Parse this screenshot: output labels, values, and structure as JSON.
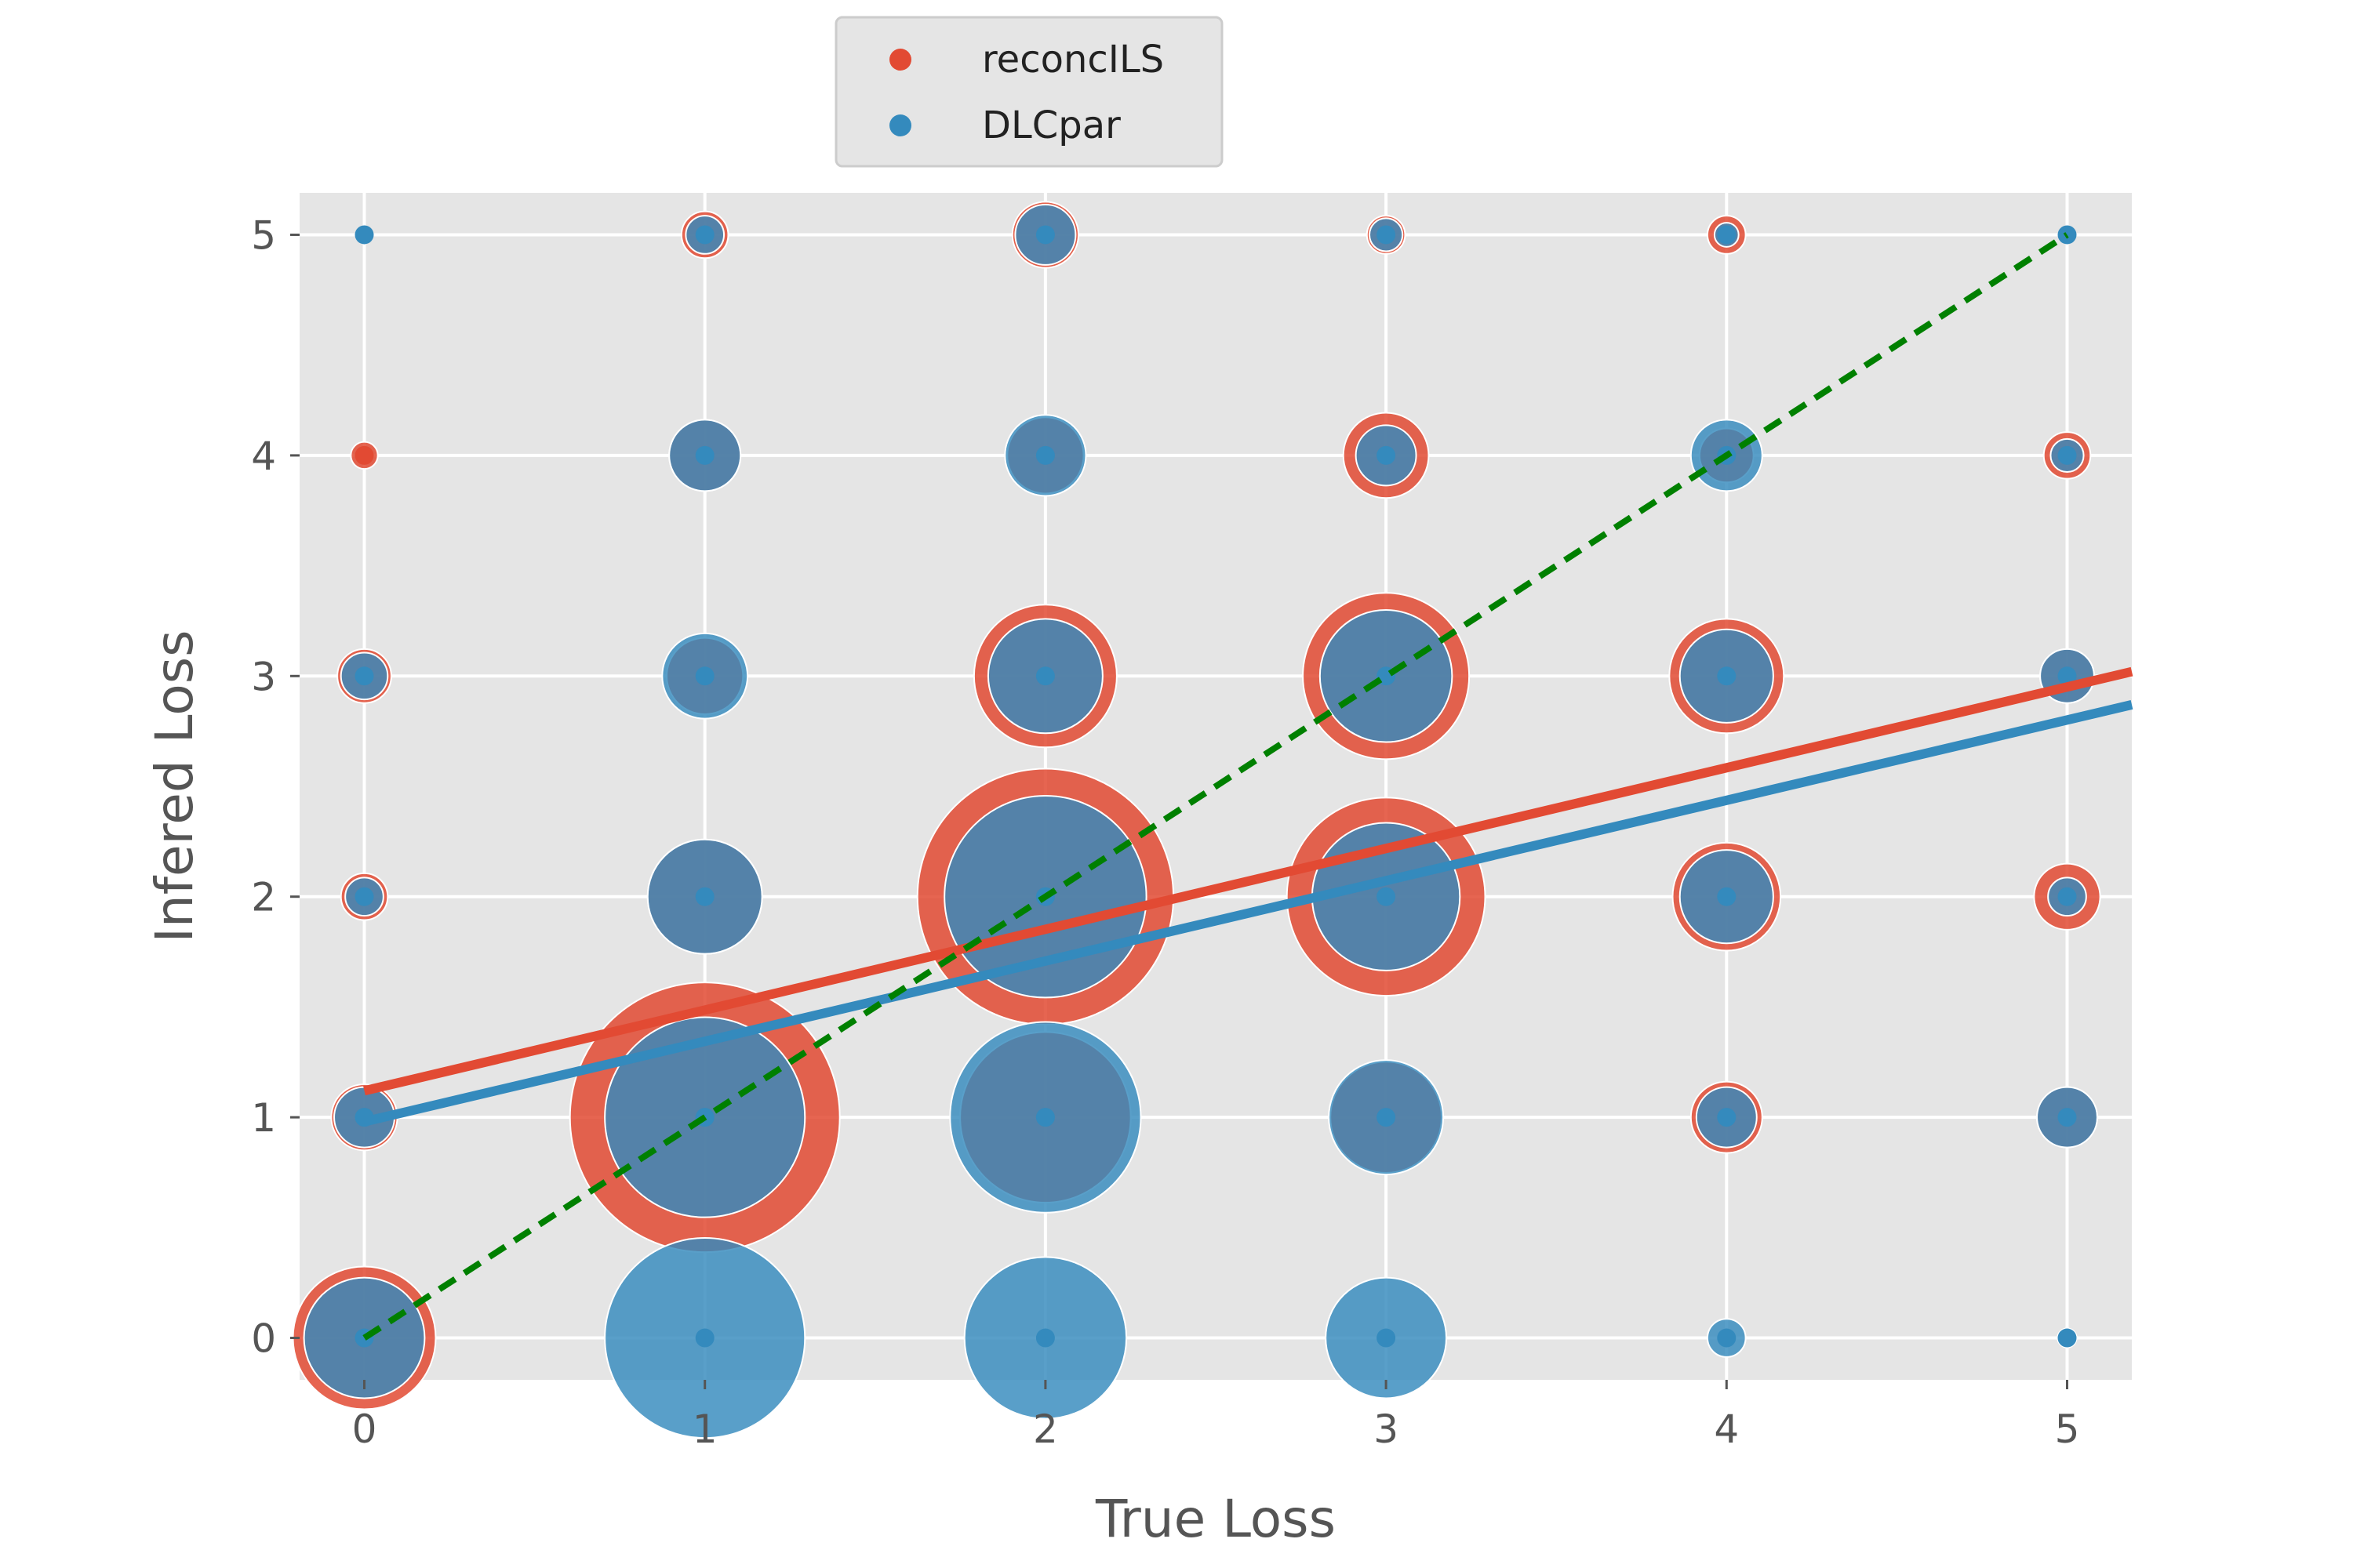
{
  "chart_data": {
    "type": "scatter",
    "title": "",
    "xlabel": "True Loss",
    "ylabel": "Infered Loss",
    "xlim": [
      -0.19,
      5.19
    ],
    "ylim": [
      -0.19,
      5.19
    ],
    "xticks": [
      "0",
      "1",
      "2",
      "3",
      "4",
      "5"
    ],
    "yticks": [
      "0",
      "1",
      "2",
      "3",
      "4",
      "5"
    ],
    "grid": true,
    "legend_position": "top-center",
    "series": [
      {
        "name": "reconcILS",
        "color": "#E24A33",
        "points": [
          {
            "x": 0,
            "y": 0,
            "count": 28
          },
          {
            "x": 0,
            "y": 1,
            "count": 6
          },
          {
            "x": 0,
            "y": 2,
            "count": 3
          },
          {
            "x": 0,
            "y": 3,
            "count": 4
          },
          {
            "x": 0,
            "y": 4,
            "count": 1
          },
          {
            "x": 1,
            "y": 1,
            "count": 100
          },
          {
            "x": 1,
            "y": 2,
            "count": 18
          },
          {
            "x": 1,
            "y": 3,
            "count": 8
          },
          {
            "x": 1,
            "y": 4,
            "count": 7
          },
          {
            "x": 1,
            "y": 5,
            "count": 3
          },
          {
            "x": 2,
            "y": 1,
            "count": 40
          },
          {
            "x": 2,
            "y": 2,
            "count": 90
          },
          {
            "x": 2,
            "y": 3,
            "count": 28
          },
          {
            "x": 2,
            "y": 4,
            "count": 8
          },
          {
            "x": 2,
            "y": 5,
            "count": 6
          },
          {
            "x": 3,
            "y": 1,
            "count": 17
          },
          {
            "x": 3,
            "y": 2,
            "count": 54
          },
          {
            "x": 3,
            "y": 3,
            "count": 38
          },
          {
            "x": 3,
            "y": 4,
            "count": 10
          },
          {
            "x": 3,
            "y": 5,
            "count": 2
          },
          {
            "x": 4,
            "y": 1,
            "count": 7
          },
          {
            "x": 4,
            "y": 2,
            "count": 16
          },
          {
            "x": 4,
            "y": 3,
            "count": 18
          },
          {
            "x": 4,
            "y": 4,
            "count": 4
          },
          {
            "x": 4,
            "y": 5,
            "count": 2
          },
          {
            "x": 5,
            "y": 1,
            "count": 5
          },
          {
            "x": 5,
            "y": 2,
            "count": 6
          },
          {
            "x": 5,
            "y": 3,
            "count": 4
          },
          {
            "x": 5,
            "y": 4,
            "count": 3
          }
        ]
      },
      {
        "name": "DLCpar",
        "color": "#348ABD",
        "points": [
          {
            "x": 0,
            "y": 0,
            "count": 20
          },
          {
            "x": 0,
            "y": 1,
            "count": 5
          },
          {
            "x": 0,
            "y": 2,
            "count": 2
          },
          {
            "x": 0,
            "y": 3,
            "count": 3
          },
          {
            "x": 0,
            "y": 5,
            "count": 0.2
          },
          {
            "x": 1,
            "y": 0,
            "count": 55
          },
          {
            "x": 1,
            "y": 1,
            "count": 55
          },
          {
            "x": 1,
            "y": 2,
            "count": 18
          },
          {
            "x": 1,
            "y": 3,
            "count": 10
          },
          {
            "x": 1,
            "y": 4,
            "count": 7
          },
          {
            "x": 1,
            "y": 5,
            "count": 2
          },
          {
            "x": 2,
            "y": 0,
            "count": 36
          },
          {
            "x": 2,
            "y": 1,
            "count": 50
          },
          {
            "x": 2,
            "y": 2,
            "count": 56
          },
          {
            "x": 2,
            "y": 3,
            "count": 18
          },
          {
            "x": 2,
            "y": 4,
            "count": 9
          },
          {
            "x": 2,
            "y": 5,
            "count": 5
          },
          {
            "x": 3,
            "y": 0,
            "count": 20
          },
          {
            "x": 3,
            "y": 1,
            "count": 18
          },
          {
            "x": 3,
            "y": 2,
            "count": 30
          },
          {
            "x": 3,
            "y": 3,
            "count": 24
          },
          {
            "x": 3,
            "y": 4,
            "count": 5
          },
          {
            "x": 3,
            "y": 5,
            "count": 1.5
          },
          {
            "x": 4,
            "y": 0,
            "count": 2
          },
          {
            "x": 4,
            "y": 1,
            "count": 5
          },
          {
            "x": 4,
            "y": 2,
            "count": 12
          },
          {
            "x": 4,
            "y": 3,
            "count": 12
          },
          {
            "x": 4,
            "y": 4,
            "count": 7
          },
          {
            "x": 4,
            "y": 5,
            "count": 0.8
          },
          {
            "x": 5,
            "y": 0,
            "count": 0.5
          },
          {
            "x": 5,
            "y": 1,
            "count": 5
          },
          {
            "x": 5,
            "y": 2,
            "count": 2
          },
          {
            "x": 5,
            "y": 3,
            "count": 4
          },
          {
            "x": 5,
            "y": 4,
            "count": 1.5
          },
          {
            "x": 5,
            "y": 5,
            "count": 0.3
          }
        ]
      }
    ],
    "regression_lines": [
      {
        "series": "reconcILS",
        "color": "#E24A33",
        "from": {
          "x": 0,
          "y": 1.12
        },
        "to": {
          "x": 5.19,
          "y": 3.02
        }
      },
      {
        "series": "DLCpar",
        "color": "#348ABD",
        "from": {
          "x": 0,
          "y": 0.98
        },
        "to": {
          "x": 5.19,
          "y": 2.87
        }
      }
    ],
    "reference_line": {
      "color": "#008000",
      "style": "dashed",
      "from": {
        "x": 0,
        "y": 0
      },
      "to": {
        "x": 5,
        "y": 5
      }
    }
  }
}
